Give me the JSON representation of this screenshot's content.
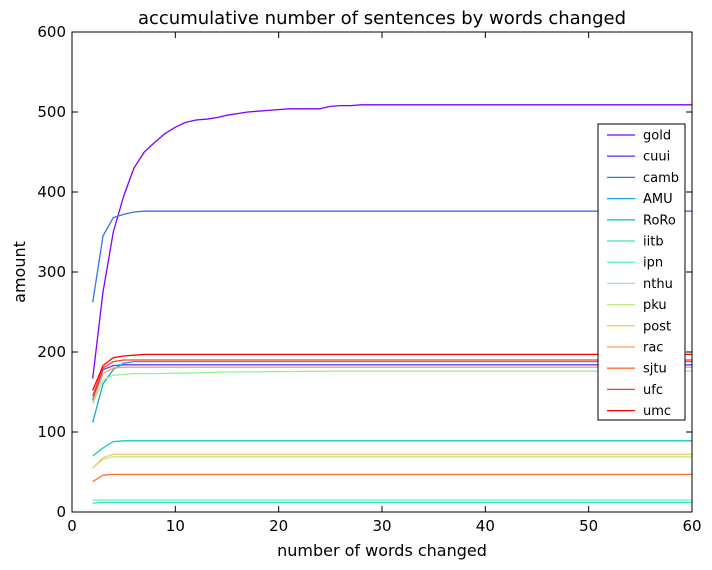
{
  "chart_data": {
    "type": "line",
    "title": "accumulative number of sentences by words changed",
    "xlabel": "number of words changed",
    "ylabel": "amount",
    "xlim": [
      0,
      60
    ],
    "ylim": [
      0,
      600
    ],
    "xticks": [
      0,
      10,
      20,
      30,
      40,
      50,
      60
    ],
    "yticks": [
      0,
      100,
      200,
      300,
      400,
      500,
      600
    ],
    "grid": false,
    "legend_position": "right",
    "series": [
      {
        "name": "gold",
        "color": "#7f00ff",
        "x": [
          2,
          3,
          4,
          5,
          6,
          7,
          8,
          9,
          10,
          11,
          12,
          13,
          14,
          15,
          16,
          17,
          18,
          19,
          20,
          21,
          22,
          23,
          24,
          25,
          26,
          27,
          28,
          60
        ],
        "y": [
          167,
          275,
          350,
          395,
          430,
          450,
          462,
          473,
          481,
          487,
          490,
          491,
          493,
          496,
          498,
          500,
          501,
          502,
          503,
          504,
          504,
          504,
          504,
          507,
          508,
          508,
          509,
          509
        ]
      },
      {
        "name": "cuui",
        "color": "#5b3ff4",
        "x": [
          2,
          3,
          4,
          5,
          6,
          7,
          60
        ],
        "y": [
          140,
          178,
          183,
          184,
          184,
          184,
          184
        ]
      },
      {
        "name": "camb",
        "color": "#3673ea",
        "x": [
          2,
          3,
          4,
          5,
          6,
          7,
          60
        ],
        "y": [
          262,
          345,
          368,
          372,
          375,
          376,
          376
        ]
      },
      {
        "name": "AMU",
        "color": "#12a6db",
        "x": [
          2,
          3,
          4,
          5,
          6,
          7,
          60
        ],
        "y": [
          112,
          160,
          178,
          186,
          188,
          188,
          188
        ]
      },
      {
        "name": "RoRo",
        "color": "#12c8cf",
        "x": [
          2,
          3,
          4,
          5,
          60
        ],
        "y": [
          70,
          80,
          88,
          89,
          89
        ]
      },
      {
        "name": "iitb",
        "color": "#36e8c5",
        "x": [
          2,
          3,
          4,
          60
        ],
        "y": [
          11,
          12,
          12,
          12
        ]
      },
      {
        "name": "ipn",
        "color": "#5bfab5",
        "x": [
          2,
          3,
          4,
          60
        ],
        "y": [
          15,
          15,
          15,
          15
        ]
      },
      {
        "name": "nthu",
        "color": "#92f59d",
        "x": [
          2,
          3,
          4,
          5,
          6,
          8,
          12,
          15,
          25,
          60
        ],
        "y": [
          135,
          165,
          171,
          172,
          173,
          173,
          174,
          175,
          176,
          176
        ]
      },
      {
        "name": "pku",
        "color": "#c1ea84",
        "x": [
          2,
          3,
          4,
          5,
          60
        ],
        "y": [
          55,
          66,
          69,
          69,
          69
        ]
      },
      {
        "name": "post",
        "color": "#e8d06c",
        "x": [
          2,
          3,
          4,
          5,
          60
        ],
        "y": [
          55,
          68,
          72,
          72,
          72
        ]
      },
      {
        "name": "rac",
        "color": "#ffa256",
        "x": [
          2,
          3,
          4,
          5,
          60
        ],
        "y": [
          138,
          173,
          180,
          181,
          181
        ]
      },
      {
        "name": "sjtu",
        "color": "#ff6e3a",
        "x": [
          2,
          3,
          4,
          5,
          60
        ],
        "y": [
          38,
          46,
          47,
          47,
          47
        ]
      },
      {
        "name": "ufc",
        "color": "#ff3e1e",
        "x": [
          2,
          3,
          4,
          5,
          6,
          60
        ],
        "y": [
          145,
          180,
          188,
          190,
          190,
          190
        ]
      },
      {
        "name": "umc",
        "color": "#ff0000",
        "x": [
          2,
          3,
          4,
          5,
          6,
          7,
          60
        ],
        "y": [
          152,
          183,
          193,
          195,
          196,
          197,
          197
        ]
      }
    ]
  }
}
